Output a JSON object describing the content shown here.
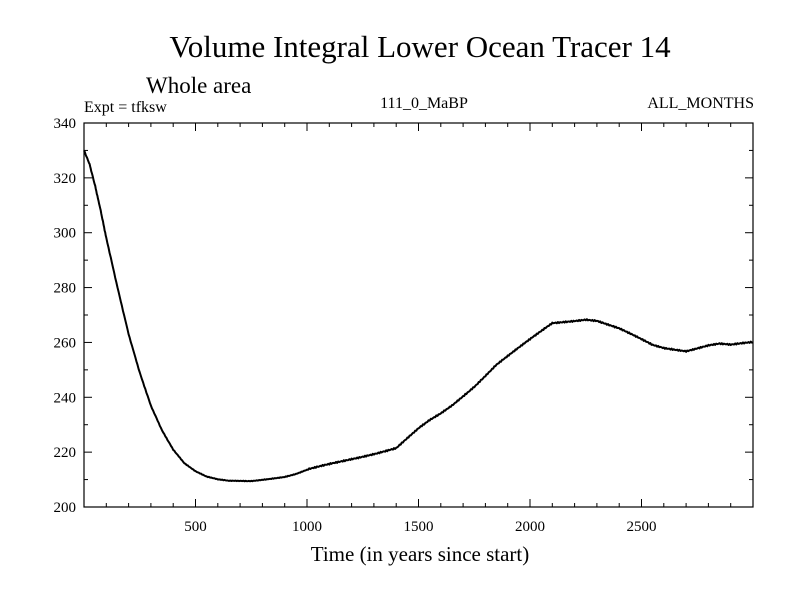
{
  "chart_data": {
    "type": "line",
    "title": "Volume Integral Lower Ocean Tracer 14",
    "subtitle": "Whole area",
    "expt_label": "Expt = tfksw",
    "run_label": "111_0_MaBP",
    "months_label": "ALL_MONTHS",
    "xlabel": "Time (in years since start)",
    "ylabel": "",
    "xlim": [
      0,
      3000
    ],
    "ylim": [
      200,
      340
    ],
    "x_ticks": [
      500,
      1000,
      1500,
      2000,
      2500
    ],
    "y_ticks": [
      200,
      220,
      240,
      260,
      280,
      300,
      320,
      340
    ],
    "line_color": "#000000",
    "series": [
      {
        "name": "Lower Ocean Tracer 14",
        "x": [
          0,
          25,
          50,
          75,
          100,
          150,
          200,
          250,
          300,
          350,
          400,
          450,
          500,
          550,
          600,
          650,
          700,
          750,
          800,
          850,
          900,
          950,
          1000,
          1050,
          1100,
          1150,
          1200,
          1250,
          1300,
          1350,
          1400,
          1450,
          1500,
          1550,
          1600,
          1650,
          1700,
          1750,
          1800,
          1850,
          1900,
          1950,
          2000,
          2050,
          2100,
          2150,
          2200,
          2250,
          2300,
          2350,
          2400,
          2450,
          2500,
          2550,
          2600,
          2650,
          2700,
          2750,
          2800,
          2850,
          2900,
          2950,
          3000
        ],
        "values": [
          330,
          325,
          317,
          308,
          298,
          280,
          263,
          249,
          237,
          228,
          221,
          216,
          213,
          211,
          210,
          209.5,
          209.5,
          209.5,
          210,
          210.5,
          211,
          212,
          213.5,
          214.5,
          215.5,
          216.5,
          217.5,
          218.5,
          219.5,
          220.5,
          221.5,
          225,
          228.5,
          231.5,
          234,
          237,
          240.5,
          244,
          248,
          252,
          255,
          258,
          261,
          264,
          267,
          267.5,
          268,
          268.5,
          268,
          266.5,
          265,
          263,
          261,
          259,
          258,
          257.5,
          257,
          258,
          259,
          259.5,
          259,
          259.5,
          260
        ]
      }
    ]
  }
}
